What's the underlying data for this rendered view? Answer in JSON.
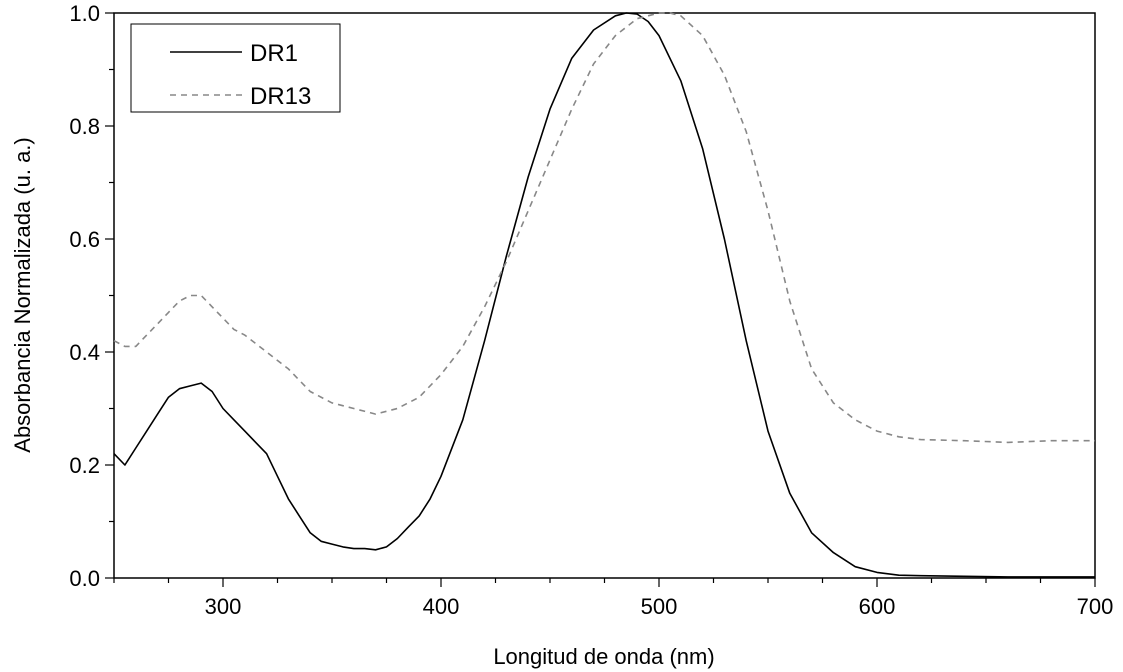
{
  "chart_data": {
    "type": "line",
    "xlabel": "Longitud de onda (nm)",
    "ylabel": "Absorbancia Normalizada (u. a.)",
    "xlim": [
      250,
      700
    ],
    "ylim": [
      0,
      1.0
    ],
    "xticks": [
      300,
      400,
      500,
      600,
      700
    ],
    "xtick_labels": [
      "300",
      "400",
      "500",
      "600",
      "700"
    ],
    "yticks": [
      0,
      0.2,
      0.4,
      0.6,
      0.8,
      1.0
    ],
    "ytick_labels": [
      "0.0",
      "0.2",
      "0.4",
      "0.6",
      "0.8",
      "1.0"
    ],
    "grid": false,
    "legend_position": "top-left",
    "series": [
      {
        "name": "DR1",
        "color": "#000000",
        "dash": "solid",
        "x": [
          250,
          255,
          260,
          265,
          270,
          275,
          280,
          285,
          290,
          295,
          300,
          305,
          310,
          315,
          320,
          325,
          330,
          335,
          340,
          345,
          350,
          355,
          360,
          365,
          370,
          375,
          380,
          385,
          390,
          395,
          400,
          410,
          420,
          430,
          440,
          450,
          460,
          470,
          480,
          485,
          490,
          495,
          500,
          510,
          520,
          530,
          540,
          550,
          560,
          570,
          580,
          590,
          600,
          610,
          620,
          640,
          660,
          680,
          700
        ],
        "y": [
          0.22,
          0.2,
          0.23,
          0.26,
          0.29,
          0.32,
          0.335,
          0.34,
          0.345,
          0.33,
          0.3,
          0.28,
          0.26,
          0.24,
          0.22,
          0.18,
          0.14,
          0.11,
          0.08,
          0.065,
          0.06,
          0.055,
          0.052,
          0.052,
          0.05,
          0.055,
          0.07,
          0.09,
          0.11,
          0.14,
          0.18,
          0.28,
          0.42,
          0.57,
          0.71,
          0.83,
          0.92,
          0.97,
          0.995,
          1.0,
          0.998,
          0.985,
          0.96,
          0.88,
          0.76,
          0.6,
          0.42,
          0.26,
          0.15,
          0.08,
          0.045,
          0.02,
          0.01,
          0.005,
          0.004,
          0.003,
          0.002,
          0.002,
          0.002
        ]
      },
      {
        "name": "DR13",
        "color": "#888888",
        "dash": "dashed",
        "x": [
          250,
          255,
          260,
          265,
          270,
          275,
          280,
          285,
          290,
          295,
          300,
          305,
          310,
          320,
          330,
          340,
          350,
          360,
          370,
          380,
          390,
          400,
          410,
          420,
          430,
          440,
          450,
          460,
          470,
          480,
          490,
          500,
          505,
          510,
          520,
          530,
          540,
          550,
          560,
          570,
          580,
          590,
          600,
          610,
          620,
          640,
          660,
          680,
          700
        ],
        "y": [
          0.42,
          0.41,
          0.41,
          0.43,
          0.45,
          0.47,
          0.49,
          0.5,
          0.5,
          0.48,
          0.46,
          0.44,
          0.43,
          0.4,
          0.37,
          0.33,
          0.31,
          0.3,
          0.29,
          0.3,
          0.32,
          0.36,
          0.41,
          0.48,
          0.56,
          0.65,
          0.74,
          0.83,
          0.91,
          0.96,
          0.99,
          1.0,
          1.0,
          0.995,
          0.96,
          0.89,
          0.79,
          0.65,
          0.49,
          0.37,
          0.31,
          0.28,
          0.26,
          0.25,
          0.245,
          0.243,
          0.24,
          0.243,
          0.243
        ]
      }
    ]
  }
}
